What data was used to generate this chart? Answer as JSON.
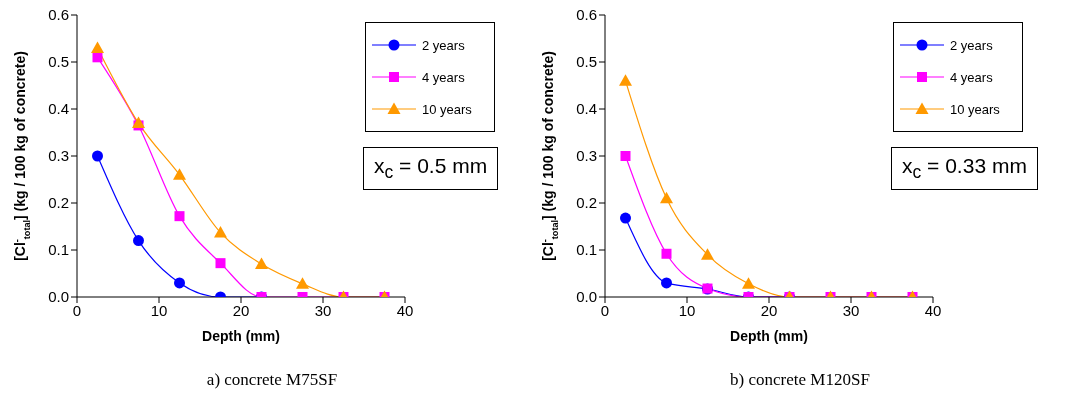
{
  "chart_data": [
    {
      "type": "line",
      "title": "a) concrete M75SF",
      "xlabel": "Depth (mm)",
      "ylabel": "[Cl$^{-}$$_{total}$] (kg / 100 kg of concrete)",
      "x": [
        2.5,
        7.5,
        12.5,
        17.5,
        22.5,
        27.5,
        32.5,
        37.5
      ],
      "series": [
        {
          "name": "2 years",
          "color": "#0000ff",
          "marker": "circle",
          "values": [
            0.3,
            0.12,
            0.03,
            0.0,
            0.0,
            null,
            null,
            null
          ]
        },
        {
          "name": "4 years",
          "color": "#ff00ff",
          "marker": "square",
          "values": [
            0.51,
            0.365,
            0.172,
            0.072,
            0.0,
            0.0,
            0.0,
            0.0
          ]
        },
        {
          "name": "10 years",
          "color": "#ff9900",
          "marker": "triangle",
          "values": [
            0.53,
            0.37,
            0.26,
            0.137,
            0.07,
            0.028,
            0.0,
            0.0
          ]
        }
      ],
      "xlim": [
        0,
        40
      ],
      "xticks": [
        0,
        10,
        20,
        30,
        40
      ],
      "ylim": [
        0,
        0.6
      ],
      "yticks": [
        {
          "value": 0,
          "label": "0.0"
        },
        0.1,
        0.2,
        0.3,
        0.4,
        0.5,
        0.6
      ],
      "annotations": [
        "x$_{c}$ = 0.5 mm"
      ],
      "legend": "top right",
      "grid": false
    },
    {
      "type": "line",
      "title": "b) concrete M120SF",
      "xlabel": "Depth (mm)",
      "ylabel": "[Cl$^{-}$$_{total}$] (kg / 100 kg of concrete)",
      "x": [
        2.5,
        7.5,
        12.5,
        17.5,
        22.5,
        27.5,
        32.5,
        37.5
      ],
      "series": [
        {
          "name": "2 years",
          "color": "#0000ff",
          "marker": "circle",
          "values": [
            0.168,
            0.03,
            0.017,
            0.0,
            0.0,
            null,
            null,
            null
          ]
        },
        {
          "name": "4 years",
          "color": "#ff00ff",
          "marker": "square",
          "values": [
            0.3,
            0.092,
            0.018,
            0.0,
            0.0,
            0.0,
            0.0,
            0.0
          ]
        },
        {
          "name": "10 years",
          "color": "#ff9900",
          "marker": "triangle",
          "values": [
            0.46,
            0.21,
            0.09,
            0.028,
            0.0,
            0.0,
            0.0,
            0.0
          ]
        }
      ],
      "xlim": [
        0,
        40
      ],
      "xticks": [
        0,
        10,
        20,
        30,
        40
      ],
      "ylim": [
        0,
        0.6
      ],
      "yticks": [
        {
          "value": 0,
          "label": "0.0"
        },
        0.1,
        0.2,
        0.3,
        0.4,
        0.5,
        0.6
      ],
      "annotations": [
        "x$_{c}$ = 0.33 mm"
      ],
      "legend": "top right",
      "grid": false
    }
  ]
}
